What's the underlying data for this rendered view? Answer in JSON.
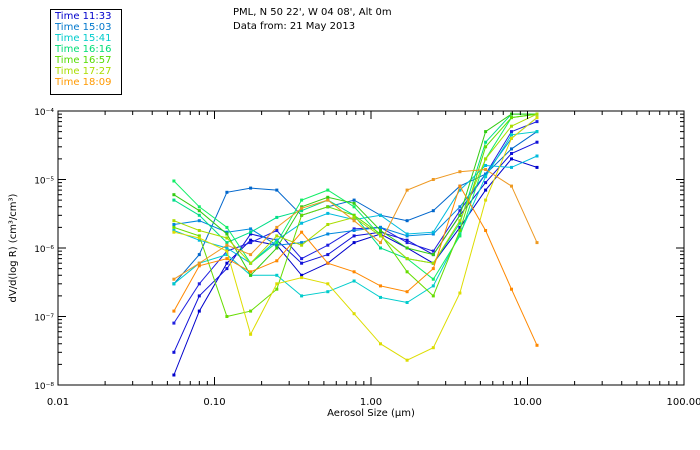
{
  "header": {
    "line1": "PML, N 50 22', W 04 08', Alt 0m",
    "line2": "Data from: 21 May 2013"
  },
  "chart_data": {
    "type": "line",
    "xscale": "log",
    "yscale": "log",
    "xlim": [
      0.01,
      100
    ],
    "ylim": [
      1e-08,
      0.0001
    ],
    "xlabel": "Aerosol Size (µm)",
    "ylabel": "dV/d(log R) (cm³/cm³)",
    "xticks": [
      {
        "value": 0.01,
        "label": "0.01"
      },
      {
        "value": 0.1,
        "label": "0.10"
      },
      {
        "value": 1,
        "label": "1.00"
      },
      {
        "value": 10,
        "label": "10.00"
      },
      {
        "value": 100,
        "label": "100.00"
      }
    ],
    "ytick_labels": [
      "10⁻⁸",
      "10⁻⁷",
      "10⁻⁶",
      "10⁻⁵",
      "10⁻⁴"
    ],
    "ytick_values": [
      1e-08,
      1e-07,
      1e-06,
      1e-05,
      0.0001
    ],
    "legend_position": "top-left",
    "x": [
      0.055,
      0.08,
      0.12,
      0.17,
      0.25,
      0.36,
      0.53,
      0.78,
      1.15,
      1.7,
      2.5,
      3.7,
      5.4,
      7.9,
      11.5
    ],
    "series": [
      {
        "name": "Time 11:33",
        "color": "#0000cc",
        "values": [
          1.4e-08,
          1.2e-07,
          6e-07,
          1.3e-06,
          1.1e-06,
          4e-07,
          6e-07,
          1.2e-06,
          1.6e-06,
          1e-06,
          6e-07,
          2e-06,
          7e-06,
          2e-05,
          1.5e-05
        ]
      },
      {
        "name": "Time 11:33",
        "color": "#1010d8",
        "values": [
          3e-08,
          2e-07,
          5e-07,
          1.6e-06,
          1.3e-06,
          6e-07,
          8e-07,
          1.5e-06,
          1.7e-06,
          1.3e-06,
          8e-07,
          3e-06,
          9e-06,
          2.4e-05,
          3.5e-05
        ]
      },
      {
        "name": "Time 11:33",
        "color": "#2020e0",
        "values": [
          8e-08,
          3e-07,
          9e-07,
          1.2e-06,
          1.8e-06,
          7e-07,
          1.1e-06,
          1.9e-06,
          2e-06,
          1.2e-06,
          9e-07,
          3.5e-06,
          1.2e-05,
          5e-05,
          7e-05
        ]
      },
      {
        "name": "Time 15:03",
        "color": "#0066cc",
        "values": [
          3e-07,
          8e-07,
          6.5e-06,
          7.5e-06,
          7e-06,
          3e-06,
          4e-06,
          5e-06,
          3e-06,
          2.5e-06,
          3.5e-06,
          8e-06,
          1.2e-05,
          2.8e-05,
          5e-05
        ]
      },
      {
        "name": "Time 15:03",
        "color": "#0088dd",
        "values": [
          2.2e-06,
          2.5e-06,
          1.7e-06,
          1.9e-06,
          1.1e-06,
          1.2e-06,
          1.6e-06,
          1.8e-06,
          2e-06,
          1.5e-06,
          1.6e-06,
          4e-06,
          1.2e-05,
          4e-05,
          8e-05
        ]
      },
      {
        "name": "Time 15:41",
        "color": "#00cccc",
        "values": [
          3e-07,
          6e-07,
          8e-07,
          4e-07,
          4e-07,
          2e-07,
          2.3e-07,
          3.3e-07,
          1.9e-07,
          1.6e-07,
          2.8e-07,
          1.6e-06,
          1.1e-05,
          4.5e-05,
          5e-05
        ]
      },
      {
        "name": "Time 15:41",
        "color": "#00bbdd",
        "values": [
          1.8e-06,
          1.3e-06,
          1e-06,
          6e-07,
          1.3e-06,
          2.3e-06,
          3.2e-06,
          2.6e-06,
          3e-06,
          1.6e-06,
          1.7e-06,
          7e-06,
          1.6e-05,
          1.5e-05,
          2.2e-05
        ]
      },
      {
        "name": "Time 16:16",
        "color": "#00dd88",
        "values": [
          5e-06,
          3e-06,
          1.2e-06,
          1.7e-06,
          2.8e-06,
          3.5e-06,
          5e-06,
          3e-06,
          1e-06,
          7e-07,
          6e-07,
          2.3e-06,
          3.5e-05,
          9e-05,
          9e-05
        ]
      },
      {
        "name": "Time 16:16",
        "color": "#11ee66",
        "values": [
          9.5e-06,
          4e-06,
          2e-06,
          6e-07,
          1.2e-06,
          5e-06,
          7e-06,
          4e-06,
          1.5e-06,
          7e-07,
          3.5e-07,
          1.5e-06,
          2e-05,
          8e-05,
          9e-05
        ]
      },
      {
        "name": "Time 16:57",
        "color": "#33cc11",
        "values": [
          6e-06,
          3.5e-06,
          1.6e-06,
          4e-07,
          1e-06,
          4e-06,
          5.5e-06,
          4.5e-06,
          1.8e-06,
          1e-06,
          8e-07,
          3e-06,
          5e-05,
          9e-05,
          9e-05
        ]
      },
      {
        "name": "Time 16:57",
        "color": "#66dd00",
        "values": [
          2e-06,
          1.5e-06,
          1e-07,
          1.2e-07,
          2.5e-07,
          3e-06,
          4e-06,
          3e-06,
          1.6e-06,
          4.5e-07,
          2e-07,
          1.8e-06,
          3e-05,
          8e-05,
          9e-05
        ]
      },
      {
        "name": "Time 17:27",
        "color": "#aadd00",
        "values": [
          2.5e-06,
          1.8e-06,
          1.4e-06,
          6e-07,
          1.5e-06,
          1.1e-06,
          2.2e-06,
          2.8e-06,
          1.5e-06,
          7e-07,
          6e-07,
          2.5e-06,
          2e-05,
          6e-05,
          9e-05
        ]
      },
      {
        "name": "Time 17:27",
        "color": "#dddd00",
        "values": [
          1.7e-06,
          1.4e-06,
          9e-07,
          5.5e-08,
          3e-07,
          3.7e-07,
          3e-07,
          1.1e-07,
          4e-08,
          2.3e-08,
          3.5e-08,
          2.2e-07,
          5e-06,
          4e-05,
          8e-05
        ]
      },
      {
        "name": "Time 18:09",
        "color": "#ff8800",
        "values": [
          1.2e-07,
          5.5e-07,
          7e-07,
          4.5e-07,
          6.5e-07,
          1.7e-06,
          6e-07,
          4.5e-07,
          2.8e-07,
          2.3e-07,
          5e-07,
          8e-06,
          1.8e-06,
          2.5e-07,
          3.8e-08
        ]
      },
      {
        "name": "Time 18:09",
        "color": "#ee9922",
        "values": [
          3.5e-07,
          6e-07,
          1.1e-06,
          8e-07,
          2e-06,
          3.8e-06,
          5e-06,
          2.5e-06,
          1.2e-06,
          7e-06,
          1e-05,
          1.3e-05,
          1.4e-05,
          8e-06,
          1.2e-06
        ]
      }
    ],
    "legend": [
      {
        "label": "Time 11:33",
        "color": "#0000cc"
      },
      {
        "label": "Time 15:03",
        "color": "#0077cc"
      },
      {
        "label": "Time 15:41",
        "color": "#00cccc"
      },
      {
        "label": "Time 16:16",
        "color": "#00dd77"
      },
      {
        "label": "Time 16:57",
        "color": "#55dd00"
      },
      {
        "label": "Time 17:27",
        "color": "#aadd00"
      },
      {
        "label": "Time 18:09",
        "color": "#ff9900"
      }
    ]
  }
}
